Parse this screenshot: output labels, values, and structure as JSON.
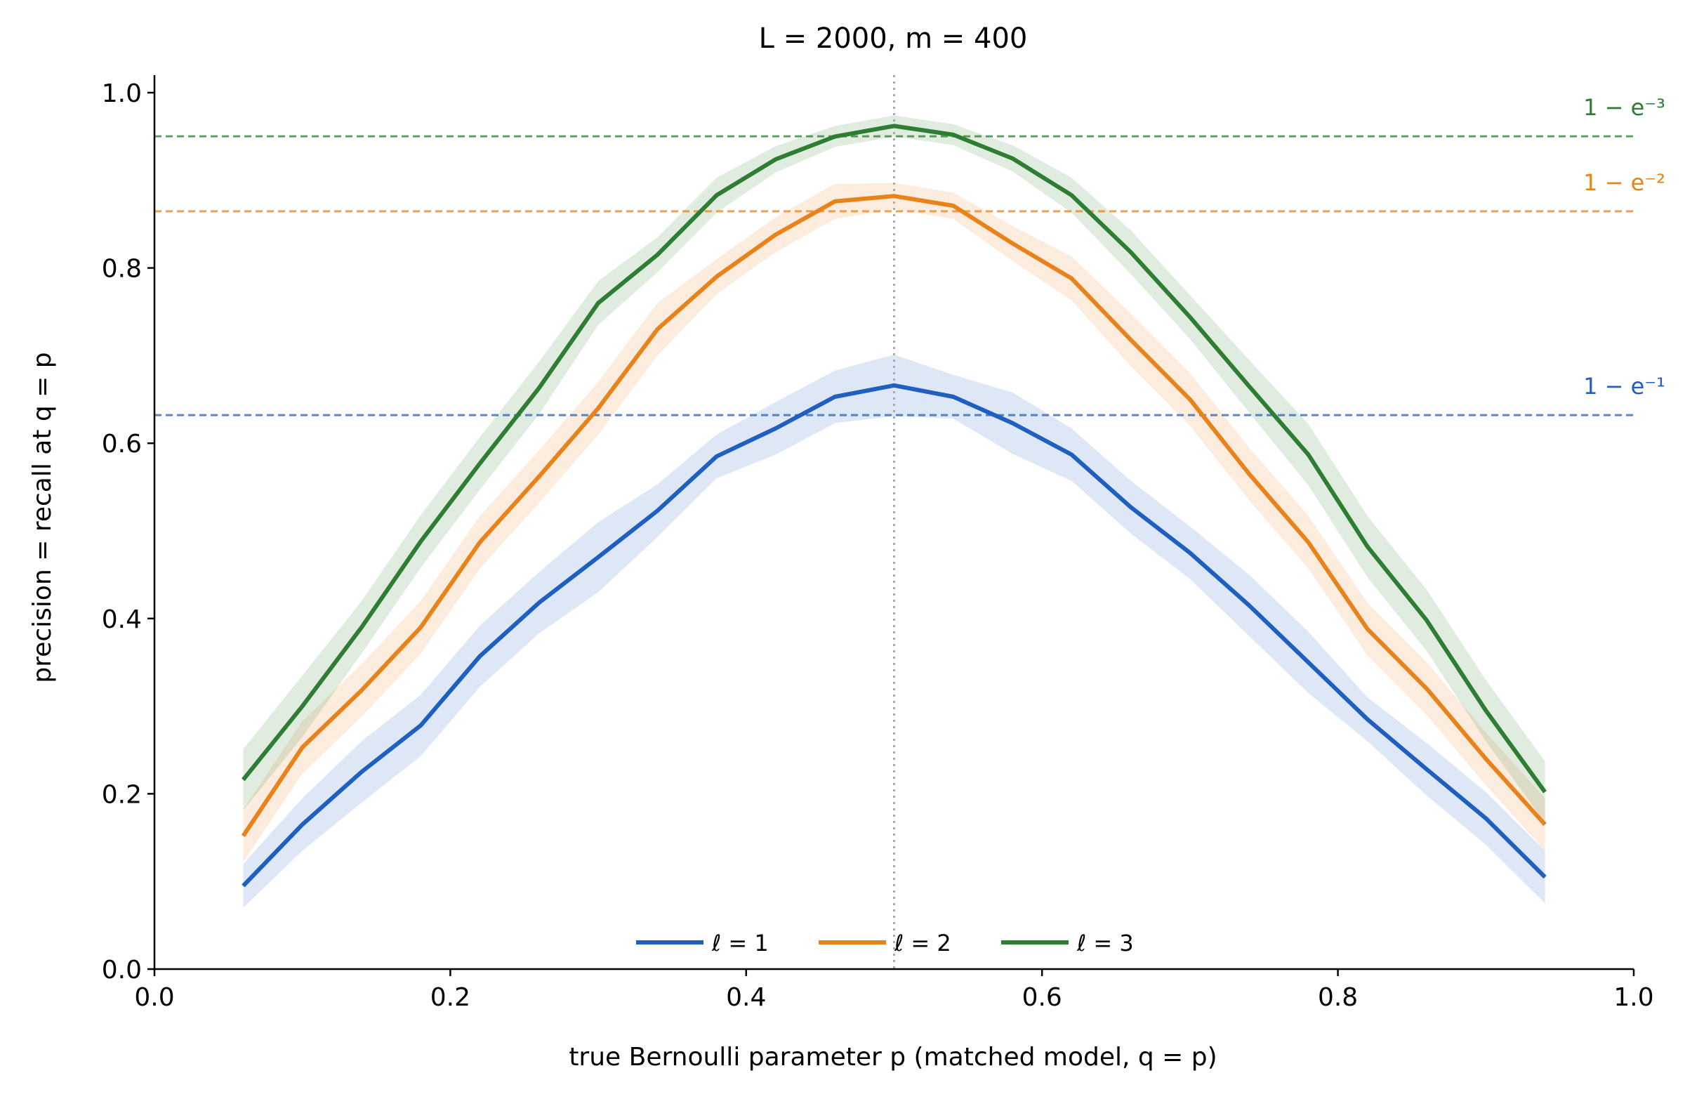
{
  "chart_data": {
    "type": "line",
    "title": "L = 2000,  m = 400",
    "xlabel": "true Bernoulli parameter p  (matched model, q = p)",
    "ylabel": "precision  =  recall  at q = p",
    "xlim": [
      0.0,
      1.0
    ],
    "ylim": [
      0.0,
      1.02
    ],
    "xticks": [
      "0.0",
      "0.2",
      "0.4",
      "0.6",
      "0.8",
      "1.0"
    ],
    "yticks": [
      "0.0",
      "0.2",
      "0.4",
      "0.6",
      "0.8",
      "1.0"
    ],
    "grid": false,
    "legend_position": "bottom-center",
    "x": [
      0.06,
      0.1,
      0.14,
      0.18,
      0.22,
      0.26,
      0.3,
      0.34,
      0.38,
      0.42,
      0.46,
      0.5,
      0.54,
      0.58,
      0.62,
      0.66,
      0.7,
      0.74,
      0.78,
      0.82,
      0.86,
      0.9,
      0.94
    ],
    "series": [
      {
        "name": "ℓ = 1",
        "color": "#1f5fbf",
        "values": [
          0.095,
          0.165,
          0.225,
          0.278,
          0.357,
          0.418,
          0.47,
          0.523,
          0.585,
          0.617,
          0.653,
          0.666,
          0.653,
          0.623,
          0.587,
          0.527,
          0.475,
          0.415,
          0.35,
          0.285,
          0.228,
          0.172,
          0.105
        ],
        "band_halfwidth": [
          0.025,
          0.03,
          0.035,
          0.035,
          0.035,
          0.035,
          0.04,
          0.03,
          0.025,
          0.03,
          0.03,
          0.035,
          0.025,
          0.035,
          0.03,
          0.03,
          0.03,
          0.035,
          0.035,
          0.025,
          0.03,
          0.03,
          0.03
        ]
      },
      {
        "name": "ℓ = 2",
        "color": "#e8821a",
        "values": [
          0.152,
          0.253,
          0.318,
          0.39,
          0.487,
          0.562,
          0.64,
          0.73,
          0.79,
          0.838,
          0.876,
          0.882,
          0.871,
          0.828,
          0.788,
          0.718,
          0.65,
          0.565,
          0.487,
          0.388,
          0.32,
          0.24,
          0.165
        ],
        "band_halfwidth": [
          0.03,
          0.03,
          0.03,
          0.03,
          0.03,
          0.03,
          0.03,
          0.03,
          0.02,
          0.02,
          0.02,
          0.015,
          0.015,
          0.02,
          0.025,
          0.03,
          0.03,
          0.03,
          0.03,
          0.03,
          0.03,
          0.03,
          0.03
        ]
      },
      {
        "name": "ℓ = 3",
        "color": "#2e7d32",
        "values": [
          0.216,
          0.3,
          0.39,
          0.488,
          0.577,
          0.663,
          0.76,
          0.815,
          0.883,
          0.924,
          0.95,
          0.962,
          0.952,
          0.925,
          0.883,
          0.818,
          0.744,
          0.665,
          0.587,
          0.482,
          0.398,
          0.295,
          0.202
        ],
        "band_halfwidth": [
          0.035,
          0.035,
          0.03,
          0.03,
          0.03,
          0.03,
          0.025,
          0.02,
          0.02,
          0.015,
          0.012,
          0.012,
          0.012,
          0.015,
          0.02,
          0.025,
          0.025,
          0.03,
          0.035,
          0.035,
          0.035,
          0.035,
          0.035
        ]
      }
    ],
    "reference_lines": [
      {
        "label": "1 − e⁻³",
        "value": 0.9502,
        "color": "#2e7d32"
      },
      {
        "label": "1 − e⁻²",
        "value": 0.8647,
        "color": "#e8821a"
      },
      {
        "label": "1 − e⁻¹",
        "value": 0.6321,
        "color": "#1f5fbf"
      }
    ],
    "vertical_line": {
      "x": 0.5,
      "color": "#aaaaaa",
      "style": "dotted"
    }
  }
}
